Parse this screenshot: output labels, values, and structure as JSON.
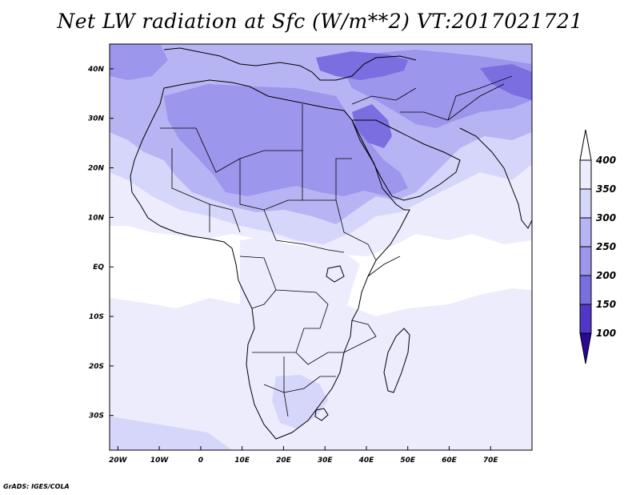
{
  "title": "Net LW radiation at Sfc (W/m**2) VT:2017021721",
  "credit": "GrADS: IGES/COLA",
  "map": {
    "lon_range": [
      -22,
      80
    ],
    "lat_range": [
      -37,
      45
    ],
    "lon_ticks": [
      {
        "value": -20,
        "label": "20W"
      },
      {
        "value": -10,
        "label": "10W"
      },
      {
        "value": 0,
        "label": "0"
      },
      {
        "value": 10,
        "label": "10E"
      },
      {
        "value": 20,
        "label": "20E"
      },
      {
        "value": 30,
        "label": "30E"
      },
      {
        "value": 40,
        "label": "40E"
      },
      {
        "value": 50,
        "label": "50E"
      },
      {
        "value": 60,
        "label": "60E"
      },
      {
        "value": 70,
        "label": "70E"
      }
    ],
    "lat_ticks": [
      {
        "value": 40,
        "label": "40N"
      },
      {
        "value": 30,
        "label": "30N"
      },
      {
        "value": 20,
        "label": "20N"
      },
      {
        "value": 10,
        "label": "10N"
      },
      {
        "value": 0,
        "label": "EQ"
      },
      {
        "value": -10,
        "label": "10S"
      },
      {
        "value": -20,
        "label": "20S"
      },
      {
        "value": -30,
        "label": "30S"
      }
    ]
  },
  "colorbar": {
    "labels": [
      "400",
      "350",
      "300",
      "250",
      "200",
      "150",
      "100"
    ],
    "bins": [
      {
        "color": "#ececfc"
      },
      {
        "color": "#d6d6fa"
      },
      {
        "color": "#b7b4f4"
      },
      {
        "color": "#9c96ec"
      },
      {
        "color": "#7a6ee0"
      },
      {
        "color": "#5236c8"
      },
      {
        "color": "#3a12b0"
      }
    ],
    "over_color": "#ffffff",
    "under_color": "#2a0898"
  },
  "colors": {
    "background_field": "#ffffff",
    "level_350_400": "#ececfc",
    "level_300_350": "#d6d6fa",
    "level_250_300": "#b7b4f4",
    "level_200_250": "#9c96ec",
    "level_150_200": "#7a6ee0"
  }
}
